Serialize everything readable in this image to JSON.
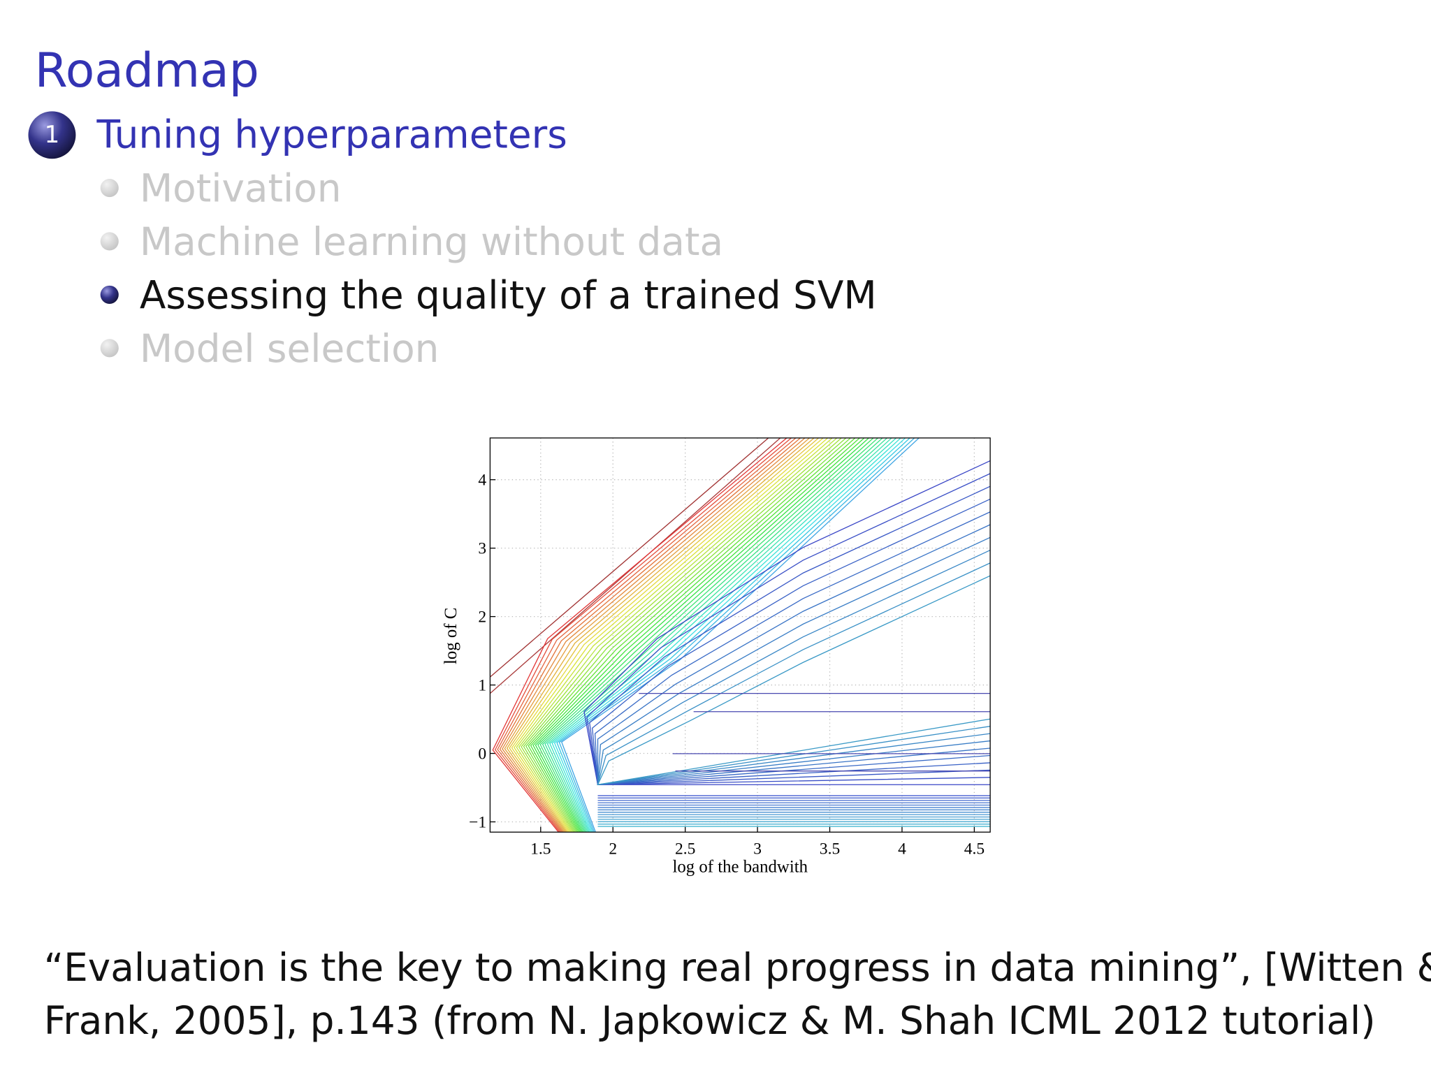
{
  "header": {
    "title": "Roadmap"
  },
  "section": {
    "number": "1",
    "title": "Tuning hyperparameters"
  },
  "items": [
    {
      "text": "Motivation",
      "active": false
    },
    {
      "text": "Machine learning without data",
      "active": false
    },
    {
      "text": "Assessing the quality of a trained SVM",
      "active": true
    },
    {
      "text": "Model selection",
      "active": false
    }
  ],
  "chart_data": {
    "type": "contour",
    "xlabel": "log of the bandwith",
    "ylabel": "log of C",
    "xlim": [
      1.15,
      4.61
    ],
    "ylim": [
      -1.15,
      4.61
    ],
    "xticks": [
      1.5,
      2,
      2.5,
      3,
      3.5,
      4,
      4.5
    ],
    "yticks": [
      {
        "value": -1,
        "label": "−1"
      },
      0,
      1,
      2,
      3,
      4
    ],
    "grid": true
  },
  "quote": {
    "lines": [
      "“Evaluation is the key to making real progress in data mining”, [Witten &",
      "Frank, 2005], p.143 (from N. Japkowicz & M. Shah ICML 2012 tutorial)"
    ]
  }
}
